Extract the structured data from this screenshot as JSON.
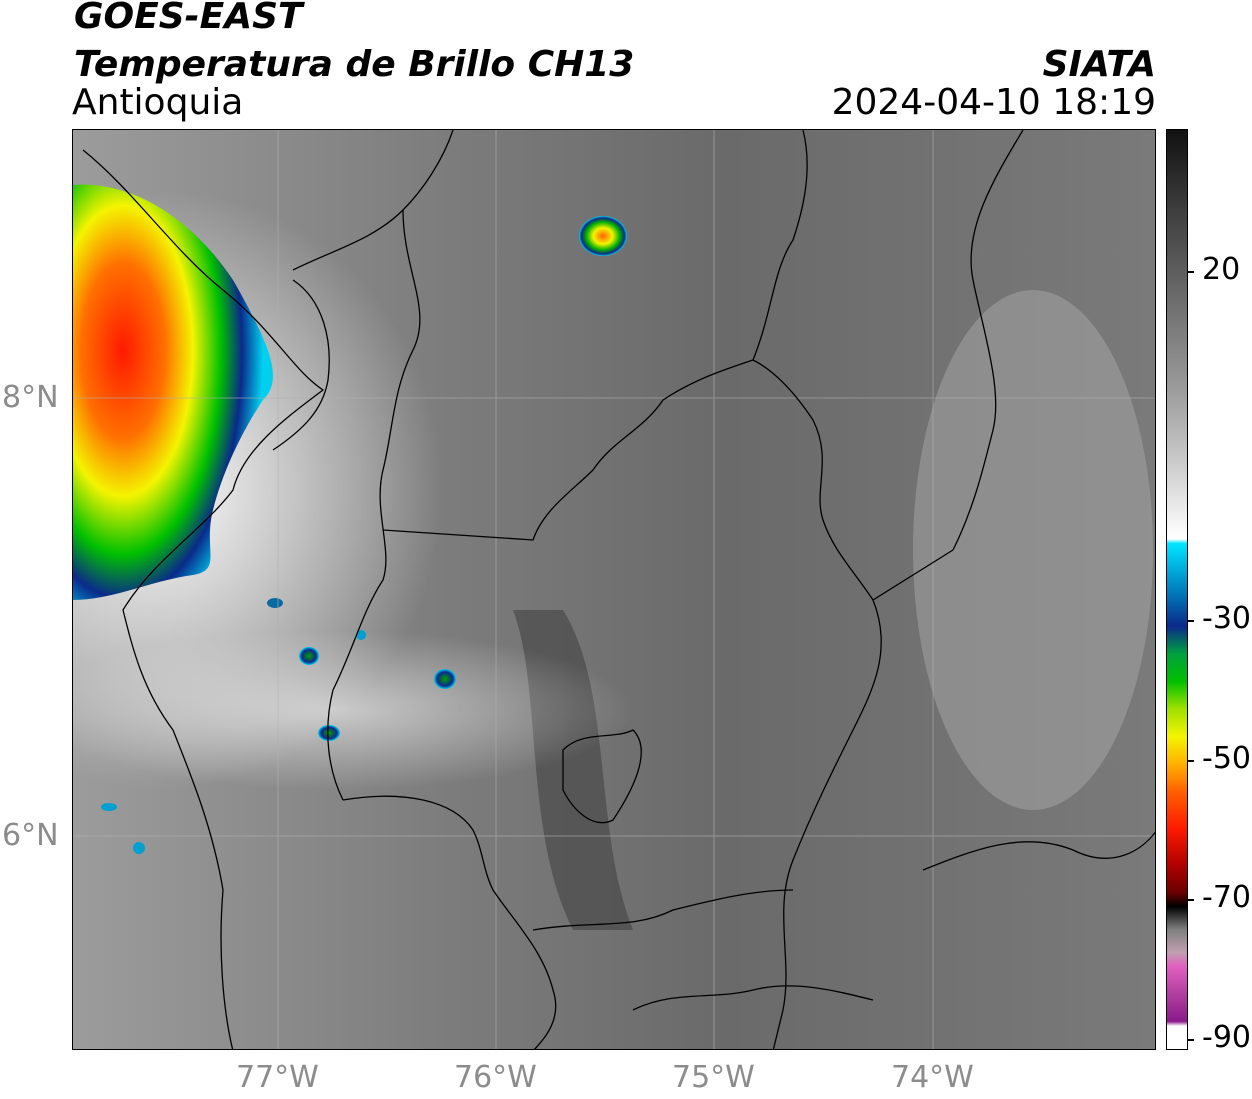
{
  "header": {
    "satellite": "GOES-EAST",
    "product": "Temperatura de Brillo CH13",
    "region": "Antioquia",
    "agency": "SIATA",
    "datetime": "2024-04-10 18:19"
  },
  "map": {
    "longitude_ticks": [
      "77°W",
      "76°W",
      "75°W",
      "74°W"
    ],
    "latitude_ticks": [
      "8°N",
      "6°N"
    ]
  },
  "colorbar": {
    "labels": [
      "20",
      "-30",
      "-50",
      "-70",
      "-90"
    ],
    "colors": {
      "warm_gray_top": "#111111",
      "warm_gray_mid": "#9a9a9a",
      "white": "#ffffff",
      "cyan": "#00e5ff",
      "blue": "#0a2a8a",
      "green": "#00c000",
      "yellow": "#f4f400",
      "orange": "#ff9000",
      "red": "#ff1a00",
      "dark_red": "#6a0000",
      "black": "#000000",
      "pink": "#e060c0",
      "purple": "#8a1a8a"
    }
  }
}
